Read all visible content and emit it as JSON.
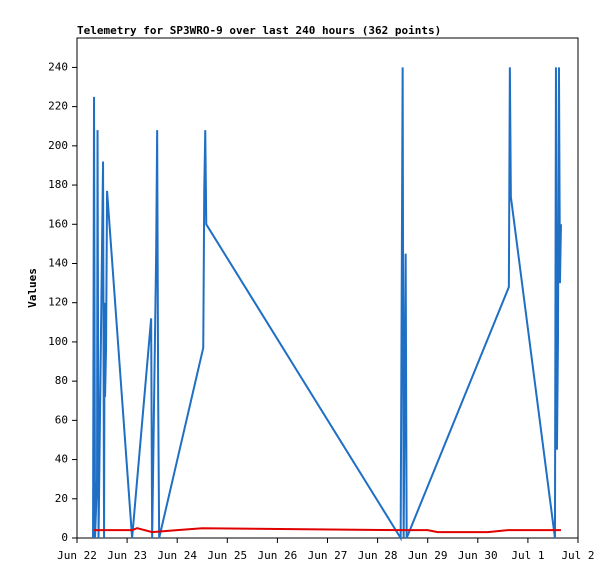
{
  "chart_data": {
    "type": "line",
    "title": "Telemetry for SP3WRO-9 over last 240 hours (362 points)",
    "y_label": "Values",
    "xlim": [
      0,
      10
    ],
    "xticks": [
      {
        "value": 0,
        "label": "Jun 22"
      },
      {
        "value": 1,
        "label": "Jun 23"
      },
      {
        "value": 2,
        "label": "Jun 24"
      },
      {
        "value": 3,
        "label": "Jun 25"
      },
      {
        "value": 4,
        "label": "Jun 26"
      },
      {
        "value": 5,
        "label": "Jun 27"
      },
      {
        "value": 6,
        "label": "Jun 28"
      },
      {
        "value": 7,
        "label": "Jun 29"
      },
      {
        "value": 8,
        "label": "Jun 30"
      },
      {
        "value": 9,
        "label": "Jul 1"
      },
      {
        "value": 10,
        "label": "Jul 2"
      }
    ],
    "ylim": [
      0,
      255
    ],
    "yticks": [
      0,
      20,
      40,
      60,
      80,
      100,
      120,
      140,
      160,
      180,
      200,
      220,
      240
    ],
    "series": [
      {
        "color": "#1f6fc5",
        "x": [
          0.32,
          0.34,
          0.36,
          0.4,
          0.41,
          0.43,
          0.52,
          0.54,
          0.55,
          0.56,
          0.58,
          0.6,
          1.1,
          1.48,
          1.5,
          1.58,
          1.6,
          1.62,
          1.64,
          2.52,
          2.54,
          2.56,
          2.58,
          6.46,
          6.5,
          6.52,
          6.56,
          6.58,
          8.62,
          8.64,
          8.66,
          9.54,
          9.56,
          9.58,
          9.6,
          9.62,
          9.64,
          9.66
        ],
        "values": [
          0,
          225,
          0,
          30,
          208,
          0,
          192,
          0,
          120,
          72,
          97,
          177,
          0,
          112,
          0,
          145,
          208,
          72,
          0,
          97,
          177,
          208,
          160,
          0,
          240,
          0,
          145,
          0,
          128,
          240,
          174,
          0,
          240,
          45,
          100,
          240,
          130,
          160
        ]
      },
      {
        "color": "#e00000",
        "x": [
          0.34,
          1.1,
          1.2,
          1.5,
          2.0,
          2.5,
          6.5,
          7.0,
          7.2,
          8.0,
          8.2,
          8.6,
          9.66
        ],
        "values": [
          4,
          4,
          5,
          3,
          4,
          5,
          4,
          4,
          3,
          3,
          3,
          4,
          4
        ]
      }
    ]
  }
}
